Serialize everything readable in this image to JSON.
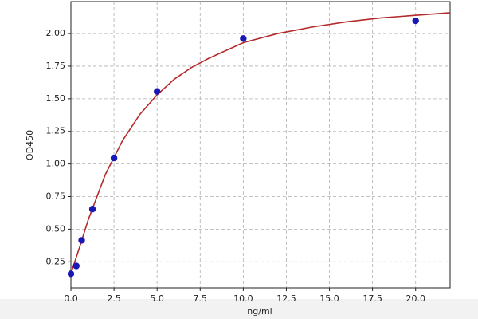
{
  "chart_data": {
    "type": "scatter",
    "x_label": "ng/ml",
    "y_label": "OD450",
    "x": [
      0,
      0.3125,
      0.625,
      1.25,
      2.5,
      5,
      10,
      20
    ],
    "values": [
      0.158,
      0.218,
      0.414,
      0.654,
      1.046,
      1.556,
      1.962,
      2.098
    ],
    "color": "#1a17b8",
    "curve": {
      "color": "#b52a2a",
      "x": [
        0,
        0.5,
        1,
        2,
        3,
        4,
        5,
        6,
        7,
        8,
        10,
        12,
        14,
        16,
        18,
        20,
        22
      ],
      "values": [
        0.16,
        0.36,
        0.57,
        0.92,
        1.18,
        1.38,
        1.53,
        1.65,
        1.74,
        1.81,
        1.93,
        2.0,
        2.05,
        2.09,
        2.12,
        2.14,
        2.16
      ]
    },
    "xlim": [
      0,
      22
    ],
    "ylim": [
      0.05,
      2.245
    ],
    "xticks": [
      {
        "value": 0,
        "label": "0.0"
      },
      2.5,
      {
        "value": 5,
        "label": "5.0"
      },
      7.5,
      {
        "value": 10,
        "label": "10.0"
      },
      12.5,
      {
        "value": 15,
        "label": "15.0"
      },
      17.5,
      {
        "value": 20,
        "label": "20.0"
      }
    ],
    "yticks": [
      0.25,
      {
        "value": 0.5,
        "label": "0.50"
      },
      0.75,
      {
        "value": 1,
        "label": "1.00"
      },
      1.25,
      {
        "value": 1.5,
        "label": "1.50"
      },
      1.75,
      {
        "value": 2,
        "label": "2.00"
      }
    ],
    "grid": true
  }
}
